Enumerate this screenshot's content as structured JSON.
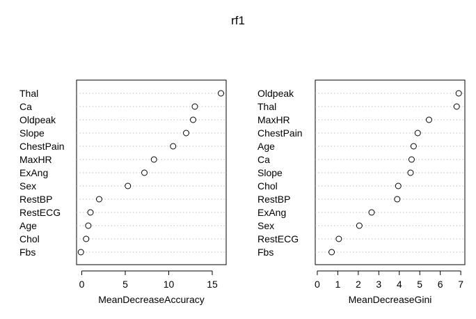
{
  "title": "rf1",
  "chart_data": [
    {
      "type": "scatter",
      "xlabel": "MeanDecreaseAccuracy",
      "xlim": [
        -0.6,
        16.6
      ],
      "xticks": [
        0,
        5,
        10,
        15
      ],
      "variables": [
        "Thal",
        "Ca",
        "Oldpeak",
        "Slope",
        "ChestPain",
        "MaxHR",
        "ExAng",
        "Sex",
        "RestBP",
        "RestECG",
        "Age",
        "Chol",
        "Fbs"
      ],
      "values": [
        16.0,
        13.0,
        12.8,
        12.0,
        10.5,
        8.3,
        7.2,
        5.3,
        2.0,
        1.0,
        0.75,
        0.5,
        -0.1
      ]
    },
    {
      "type": "scatter",
      "xlabel": "MeanDecreaseGini",
      "xlim": [
        -0.1,
        7.2
      ],
      "xticks": [
        0,
        1,
        2,
        3,
        4,
        5,
        6,
        7
      ],
      "variables": [
        "Oldpeak",
        "Thal",
        "MaxHR",
        "ChestPain",
        "Age",
        "Ca",
        "Slope",
        "Chol",
        "RestBP",
        "ExAng",
        "Sex",
        "RestECG",
        "Fbs"
      ],
      "values": [
        6.9,
        6.8,
        5.45,
        4.9,
        4.7,
        4.6,
        4.55,
        3.95,
        3.9,
        2.65,
        2.05,
        1.05,
        0.7
      ]
    }
  ]
}
